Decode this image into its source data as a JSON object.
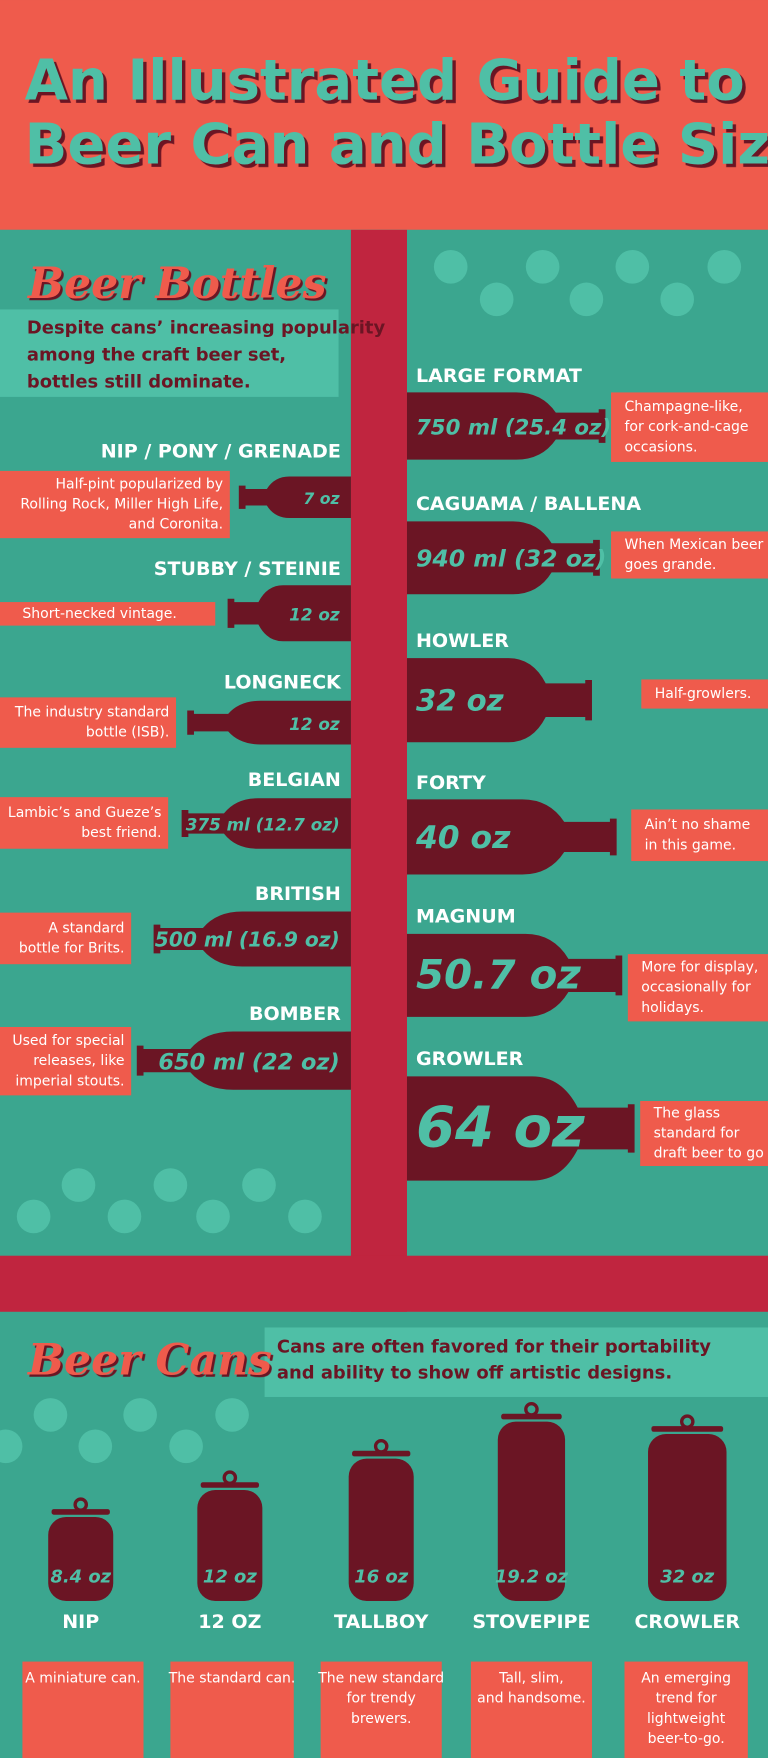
{
  "header": {
    "title_lines": [
      "An Illustrated Guide to",
      "Beer Can and Bottle Sizes"
    ]
  },
  "bottles": {
    "heading": "Beer Bottles",
    "intro_lines": [
      "Despite cans’ increasing popularity",
      "among the craft beer set,",
      "bottles still dominate."
    ],
    "items": [
      {
        "name": "NIP / PONY / GRENADE",
        "size": "7 oz",
        "description_lines": [
          "Half-pint popularized by",
          "Rolling Rock, Miller High Life,",
          "and Coronita."
        ]
      },
      {
        "name": "STUBBY / STEINIE",
        "size": "12 oz",
        "description_lines": [
          "Short-necked vintage."
        ]
      },
      {
        "name": "LONGNECK",
        "size": "12 oz",
        "description_lines": [
          "The industry standard",
          "bottle (ISB)."
        ]
      },
      {
        "name": "BELGIAN",
        "size": "375 ml (12.7 oz)",
        "description_lines": [
          "Lambic’s and Gueze’s",
          "best friend."
        ]
      },
      {
        "name": "BRITISH",
        "size": "500 ml (16.9 oz)",
        "description_lines": [
          "A standard",
          "bottle for Brits."
        ]
      },
      {
        "name": "BOMBER",
        "size": "650 ml (22 oz)",
        "description_lines": [
          "Used for special",
          "releases, like",
          "imperial stouts."
        ]
      },
      {
        "name": "LARGE FORMAT",
        "size": "750 ml (25.4 oz)",
        "description_lines": [
          "Champagne-like,",
          "for cork-and-cage",
          "occasions."
        ]
      },
      {
        "name": "CAGUAMA / BALLENA",
        "size": "940 ml (32 oz)",
        "description_lines": [
          "When Mexican beer",
          "goes grande."
        ]
      },
      {
        "name": "HOWLER",
        "size": "32 oz",
        "description_lines": [
          "Half-growlers."
        ]
      },
      {
        "name": "FORTY",
        "size": "40 oz",
        "description_lines": [
          "Ain’t no shame",
          "in this game."
        ]
      },
      {
        "name": "MAGNUM",
        "size": "50.7 oz",
        "description_lines": [
          "More for display,",
          "occasionally for",
          "holidays."
        ]
      },
      {
        "name": "GROWLER",
        "size": "64 oz",
        "description_lines": [
          "The glass",
          "standard for",
          "draft beer to go"
        ]
      }
    ]
  },
  "cans": {
    "heading": "Beer Cans",
    "intro_lines": [
      "Cans are often favored for their portability",
      "and ability to show off artistic designs."
    ],
    "items": [
      {
        "name": "NIP",
        "size": "8.4 oz",
        "description_lines": [
          "A miniature can."
        ]
      },
      {
        "name": "12 OZ",
        "size": "12 oz",
        "description_lines": [
          "The standard can."
        ]
      },
      {
        "name": "TALLBOY",
        "size": "16 oz",
        "description_lines": [
          "The new standard",
          "for trendy",
          "brewers."
        ]
      },
      {
        "name": "STOVEPIPE",
        "size": "19.2 oz",
        "description_lines": [
          "Tall, slim,",
          "and handsome."
        ]
      },
      {
        "name": "CROWLER",
        "size": "32 oz",
        "description_lines": [
          "An emerging",
          "trend for",
          "lightweight",
          "beer-to-go."
        ]
      }
    ]
  }
}
